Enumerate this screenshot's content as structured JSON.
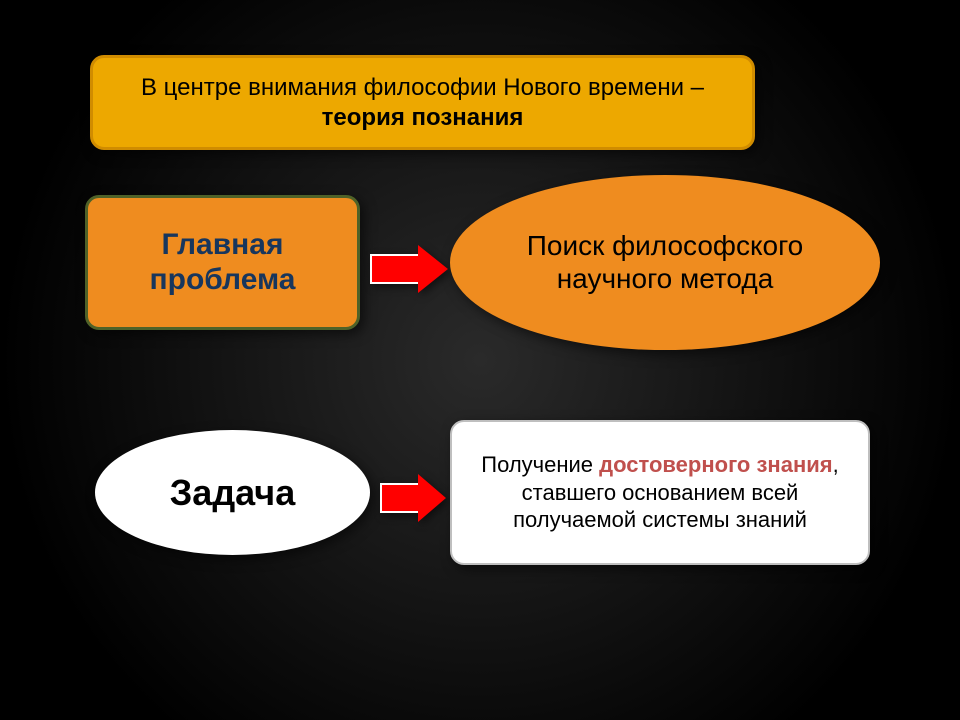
{
  "colors": {
    "header_bg": "#eda800",
    "header_border": "#d08c00",
    "header_text": "#000000",
    "problem_bg": "#ef8c1f",
    "problem_border": "#4f6228",
    "problem_text": "#17365d",
    "method_bg": "#ef8c1f",
    "method_text": "#000000",
    "task_bg": "#ffffff",
    "task_text": "#000000",
    "result_bg": "#ffffff",
    "result_border": "#bfbfbf",
    "result_text": "#000000",
    "result_bold": "#c0504d",
    "arrow_fill": "#ff0000",
    "arrow_border": "#ffffff"
  },
  "header": {
    "line1": "В центре внимания философии Нового времени –",
    "line2": "теория познания"
  },
  "problem": {
    "label": "Главная проблема"
  },
  "method": {
    "text": "Поиск философского научного метода"
  },
  "task": {
    "label": "Задача"
  },
  "result": {
    "pre": "Получение ",
    "bold": "достоверного знания",
    "post": ", ставшего основанием всей получаемой системы знаний"
  }
}
